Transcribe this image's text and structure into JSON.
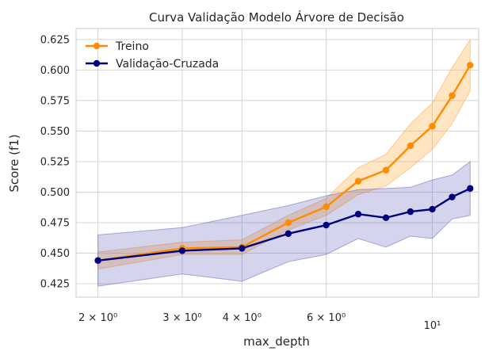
{
  "chart_data": {
    "type": "line",
    "title": "Curva Validação Modelo Árvore de Decisão",
    "xlabel": "max_depth",
    "ylabel": "Score (f1)",
    "x_scale": "log",
    "x": [
      2,
      3,
      4,
      5,
      6,
      7,
      8,
      9,
      10,
      11,
      12
    ],
    "xlim": [
      1.8,
      12.5
    ],
    "ylim": [
      0.414,
      0.634
    ],
    "x_ticks": [
      {
        "value": 2,
        "label": "2 × 10⁰"
      },
      {
        "value": 3,
        "label": "3 × 10⁰"
      },
      {
        "value": 4,
        "label": "4 × 10⁰"
      },
      {
        "value": 6,
        "label": "6 × 10⁰"
      },
      {
        "value": 10,
        "label": "10¹"
      }
    ],
    "y_ticks": [
      {
        "value": 0.425,
        "label": "0.425"
      },
      {
        "value": 0.45,
        "label": "0.450"
      },
      {
        "value": 0.475,
        "label": "0.475"
      },
      {
        "value": 0.5,
        "label": "0.500"
      },
      {
        "value": 0.525,
        "label": "0.525"
      },
      {
        "value": 0.55,
        "label": "0.550"
      },
      {
        "value": 0.575,
        "label": "0.575"
      },
      {
        "value": 0.6,
        "label": "0.600"
      },
      {
        "value": 0.625,
        "label": "0.625"
      }
    ],
    "grid": true,
    "legend_position": "top-left",
    "series": [
      {
        "name": "Treino",
        "color": "#ff8c00",
        "values": [
          0.444,
          0.454,
          0.455,
          0.475,
          0.488,
          0.509,
          0.518,
          0.538,
          0.554,
          0.579,
          0.604
        ],
        "upper": [
          0.451,
          0.459,
          0.461,
          0.481,
          0.495,
          0.52,
          0.531,
          0.556,
          0.573,
          0.602,
          0.625
        ],
        "lower": [
          0.437,
          0.449,
          0.449,
          0.469,
          0.481,
          0.498,
          0.505,
          0.52,
          0.535,
          0.556,
          0.583
        ]
      },
      {
        "name": "Validação-Cruzada",
        "color": "#00007f",
        "values": [
          0.444,
          0.452,
          0.454,
          0.466,
          0.473,
          0.482,
          0.479,
          0.484,
          0.486,
          0.496,
          0.503
        ],
        "upper": [
          0.465,
          0.471,
          0.481,
          0.489,
          0.497,
          0.502,
          0.503,
          0.504,
          0.51,
          0.514,
          0.525
        ],
        "lower": [
          0.423,
          0.433,
          0.427,
          0.443,
          0.449,
          0.462,
          0.455,
          0.464,
          0.462,
          0.478,
          0.481
        ]
      }
    ]
  }
}
